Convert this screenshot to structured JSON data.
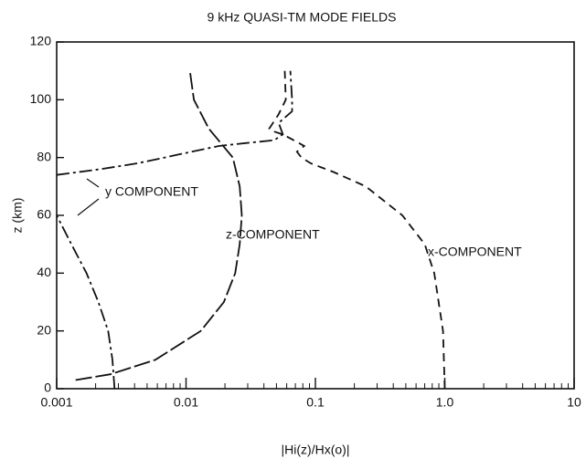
{
  "chart_data": {
    "type": "line",
    "title": "9 kHz QUASI-TM MODE FIELDS",
    "xlabel": "|Hi(z)/Hx(o)|",
    "ylabel": "z (km)",
    "xscale": "log",
    "xlim": [
      0.001,
      10
    ],
    "ylim": [
      0,
      120
    ],
    "xticks": [
      0.001,
      0.01,
      0.1,
      {
        "value": 1,
        "label": "1.0"
      },
      10
    ],
    "yticks": [
      0,
      20,
      40,
      60,
      80,
      100,
      120
    ],
    "series": [
      {
        "name": "x-COMPONENT",
        "color": "#111111",
        "dash": "9 6",
        "x": [
          1.0,
          0.97,
          0.83,
          0.7,
          0.47,
          0.245,
          0.138,
          0.092,
          0.078,
          0.072,
          0.082,
          0.068,
          0.056,
          0.048,
          0.044,
          0.052,
          0.059,
          0.058
        ],
        "y": [
          0,
          20,
          40,
          50,
          60,
          70,
          75,
          78,
          80,
          82,
          84,
          86,
          88,
          89,
          90,
          95,
          100,
          110
        ]
      },
      {
        "name": "z-COMPONENT",
        "color": "#111111",
        "dash": "18 4",
        "x": [
          0.0014,
          0.0026,
          0.0058,
          0.013,
          0.0196,
          0.024,
          0.026,
          0.027,
          0.026,
          0.023,
          0.015,
          0.0115,
          0.0107
        ],
        "y": [
          3,
          5,
          10,
          20,
          30,
          40,
          50,
          60,
          70,
          80,
          90,
          100,
          110
        ]
      },
      {
        "name": "y COMPONENT",
        "color": "#111111",
        "dash": "14 4 3 4",
        "x": [
          0.0028,
          0.0027,
          0.0025,
          0.0021,
          0.0017,
          0.0013,
          0.001,
          null,
          0.001,
          0.0022,
          0.0042,
          0.0068,
          0.011,
          0.018,
          0.029,
          0.048,
          0.056,
          0.052,
          0.066,
          0.066,
          0.064
        ],
        "y": [
          0,
          10,
          20,
          30,
          40,
          50,
          60,
          null,
          74,
          76,
          78,
          80,
          82,
          84,
          85,
          86,
          88,
          92,
          96,
          100,
          110
        ]
      }
    ]
  }
}
